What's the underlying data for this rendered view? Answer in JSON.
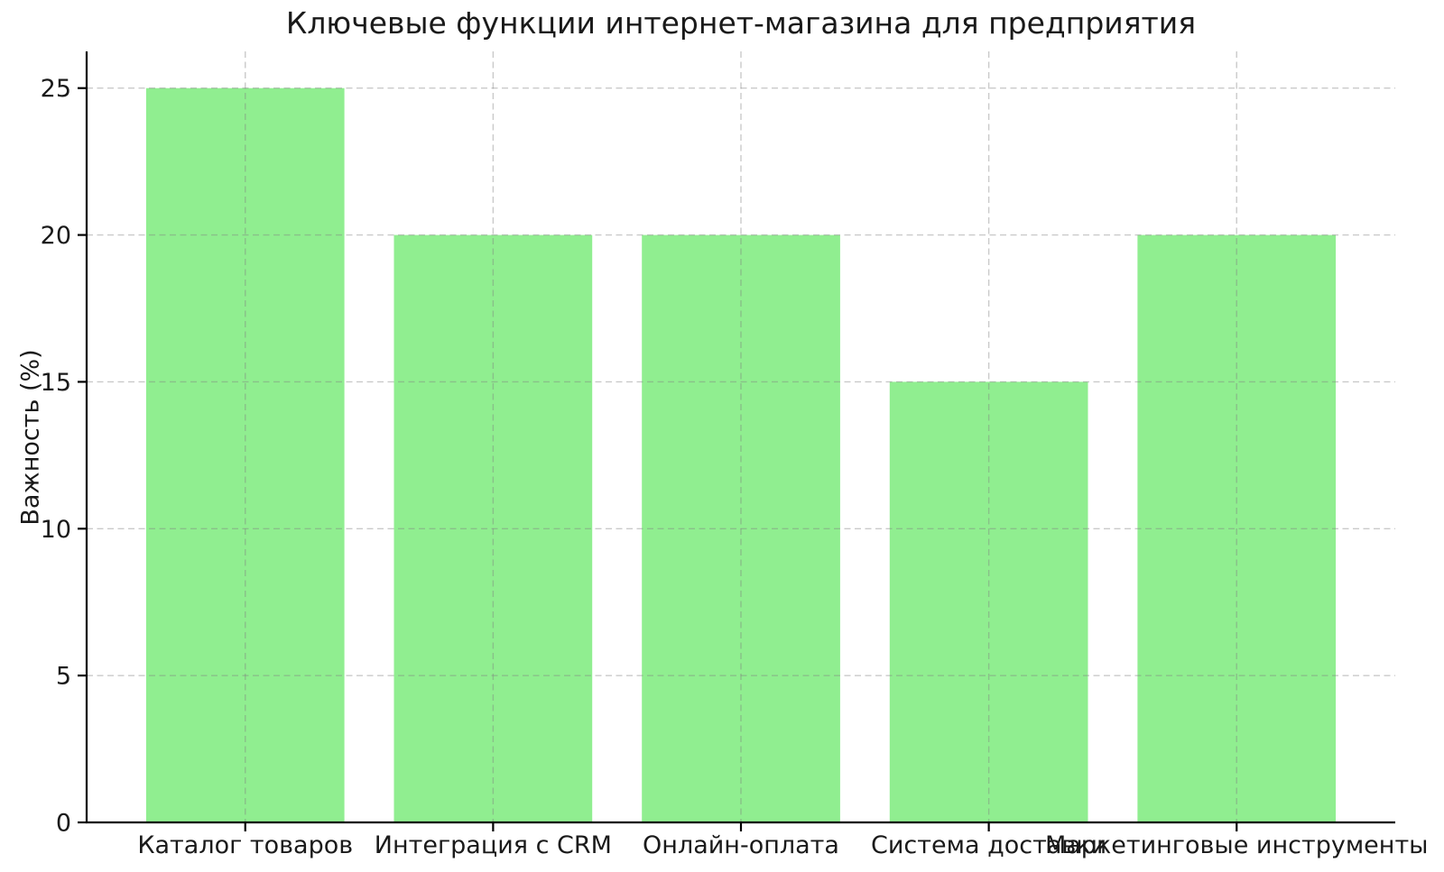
{
  "chart_data": {
    "type": "bar",
    "title": "Ключевые функции интернет-магазина для предприятия",
    "xlabel": "",
    "ylabel": "Важность (%)",
    "categories": [
      "Каталог товаров",
      "Интеграция с CRM",
      "Онлайн-оплата",
      "Система доставки",
      "Маркетинговые инструменты"
    ],
    "values": [
      25,
      20,
      20,
      15,
      20
    ],
    "yticks": [
      0,
      5,
      10,
      15,
      20,
      25
    ],
    "ylim": [
      0,
      26.25
    ],
    "bar_width_fraction": 0.8,
    "bar_color": "#90EE90",
    "grid": true,
    "grid_style": "dashed",
    "grid_on_top_of_bars": true,
    "grid_color": "rgba(128,128,128,0.42)",
    "axis_color": "#000000",
    "text_color": "#1a1a1a",
    "legend": null
  }
}
